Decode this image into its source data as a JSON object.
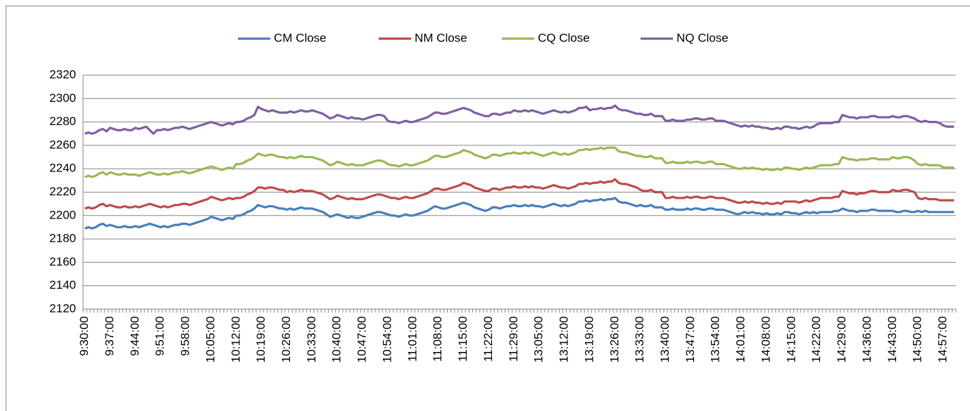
{
  "chart_data": {
    "type": "line",
    "categories": [
      "9:30:00",
      null,
      null,
      null,
      null,
      null,
      null,
      "9:37:00",
      null,
      null,
      null,
      null,
      null,
      null,
      "9:44:00",
      null,
      null,
      null,
      null,
      null,
      null,
      "9:51:00",
      null,
      null,
      null,
      null,
      null,
      null,
      "9:58:00",
      null,
      null,
      null,
      null,
      null,
      null,
      "10:05:00",
      null,
      null,
      null,
      null,
      null,
      null,
      "10:12:00",
      null,
      null,
      null,
      null,
      null,
      null,
      "10:19:00",
      null,
      null,
      null,
      null,
      null,
      null,
      "10:26:00",
      null,
      null,
      null,
      null,
      null,
      null,
      "10:33:00",
      null,
      null,
      null,
      null,
      null,
      null,
      "10:40:00",
      null,
      null,
      null,
      null,
      null,
      null,
      "10:47:00",
      null,
      null,
      null,
      null,
      null,
      null,
      "10:54:00",
      null,
      null,
      null,
      null,
      null,
      null,
      "11:01:00",
      null,
      null,
      null,
      null,
      null,
      null,
      "11:08:00",
      null,
      null,
      null,
      null,
      null,
      null,
      "11:15:00",
      null,
      null,
      null,
      null,
      null,
      null,
      "11:22:00",
      null,
      null,
      null,
      null,
      null,
      null,
      "11:29:00",
      null,
      null,
      null,
      null,
      null,
      null,
      "13:05:00",
      null,
      null,
      null,
      null,
      null,
      null,
      "13:12:00",
      null,
      null,
      null,
      null,
      null,
      null,
      "13:19:00",
      null,
      null,
      null,
      null,
      null,
      null,
      "13:26:00",
      null,
      null,
      null,
      null,
      null,
      null,
      "13:33:00",
      null,
      null,
      null,
      null,
      null,
      null,
      "13:40:00",
      null,
      null,
      null,
      null,
      null,
      null,
      "13:47:00",
      null,
      null,
      null,
      null,
      null,
      null,
      "13:54:00",
      null,
      null,
      null,
      null,
      null,
      null,
      "14:01:00",
      null,
      null,
      null,
      null,
      null,
      null,
      "14:08:00",
      null,
      null,
      null,
      null,
      null,
      null,
      "14:15:00",
      null,
      null,
      null,
      null,
      null,
      null,
      "14:22:00",
      null,
      null,
      null,
      null,
      null,
      null,
      "14:29:00",
      null,
      null,
      null,
      null,
      null,
      null,
      "14:36:00",
      null,
      null,
      null,
      null,
      null,
      null,
      "14:43:00",
      null,
      null,
      null,
      null,
      null,
      null,
      "14:50:00",
      null,
      null,
      null,
      null,
      null,
      null,
      "14:57:00",
      null,
      null,
      null
    ],
    "series": [
      {
        "name": "CM Close",
        "color": "#4a7ebb",
        "values": [
          2189,
          2190,
          2189,
          2190,
          2192,
          2193,
          2191,
          2192,
          2191,
          2190,
          2190,
          2191,
          2190,
          2190,
          2191,
          2190,
          2191,
          2192,
          2193,
          2192,
          2191,
          2190,
          2191,
          2190,
          2191,
          2192,
          2192,
          2193,
          2193,
          2192,
          2193,
          2194,
          2195,
          2196,
          2197,
          2199,
          2198,
          2197,
          2196,
          2197,
          2198,
          2197,
          2200,
          2200,
          2201,
          2203,
          2204,
          2206,
          2209,
          2208,
          2207,
          2208,
          2208,
          2207,
          2206,
          2206,
          2205,
          2206,
          2205,
          2206,
          2207,
          2206,
          2206,
          2206,
          2205,
          2204,
          2203,
          2201,
          2199,
          2200,
          2201,
          2200,
          2199,
          2198,
          2199,
          2198,
          2198,
          2199,
          2200,
          2201,
          2202,
          2203,
          2203,
          2202,
          2201,
          2200,
          2200,
          2199,
          2200,
          2201,
          2200,
          2200,
          2201,
          2202,
          2203,
          2204,
          2206,
          2208,
          2207,
          2206,
          2206,
          2207,
          2208,
          2209,
          2210,
          2211,
          2210,
          2209,
          2207,
          2206,
          2205,
          2204,
          2205,
          2207,
          2207,
          2206,
          2207,
          2208,
          2208,
          2209,
          2208,
          2208,
          2209,
          2208,
          2209,
          2208,
          2208,
          2207,
          2208,
          2209,
          2210,
          2209,
          2208,
          2209,
          2208,
          2209,
          2210,
          2212,
          2212,
          2213,
          2212,
          2213,
          2213,
          2214,
          2213,
          2214,
          2214,
          2215,
          2212,
          2211,
          2211,
          2210,
          2209,
          2208,
          2209,
          2208,
          2208,
          2209,
          2207,
          2207,
          2207,
          2205,
          2205,
          2206,
          2205,
          2205,
          2205,
          2206,
          2205,
          2206,
          2206,
          2205,
          2205,
          2206,
          2206,
          2205,
          2205,
          2205,
          2204,
          2203,
          2202,
          2201,
          2202,
          2203,
          2202,
          2203,
          2202,
          2202,
          2201,
          2202,
          2201,
          2201,
          2202,
          2201,
          2203,
          2203,
          2202,
          2202,
          2201,
          2202,
          2203,
          2202,
          2203,
          2202,
          2203,
          2203,
          2203,
          2203,
          2204,
          2204,
          2206,
          2205,
          2204,
          2204,
          2203,
          2204,
          2204,
          2204,
          2205,
          2205,
          2204,
          2204,
          2204,
          2204,
          2204,
          2203,
          2203,
          2204,
          2204,
          2203,
          2203,
          2204,
          2203,
          2204,
          2203,
          2203,
          2203,
          2203,
          2203,
          2203,
          2203,
          2203
        ]
      },
      {
        "name": "NM Close",
        "color": "#be4b48",
        "values": [
          2206,
          2207,
          2206,
          2207,
          2209,
          2210,
          2208,
          2209,
          2208,
          2207,
          2207,
          2208,
          2207,
          2207,
          2208,
          2207,
          2208,
          2209,
          2210,
          2209,
          2208,
          2207,
          2208,
          2207,
          2208,
          2209,
          2209,
          2210,
          2210,
          2209,
          2210,
          2211,
          2212,
          2213,
          2214,
          2216,
          2215,
          2214,
          2213,
          2214,
          2215,
          2214,
          2215,
          2215,
          2216,
          2218,
          2219,
          2221,
          2224,
          2224,
          2223,
          2224,
          2224,
          2223,
          2222,
          2222,
          2220,
          2221,
          2220,
          2221,
          2222,
          2221,
          2221,
          2221,
          2220,
          2219,
          2218,
          2216,
          2214,
          2215,
          2217,
          2216,
          2215,
          2214,
          2215,
          2214,
          2214,
          2214,
          2215,
          2216,
          2217,
          2218,
          2218,
          2217,
          2216,
          2215,
          2215,
          2214,
          2215,
          2216,
          2215,
          2215,
          2216,
          2217,
          2218,
          2219,
          2221,
          2223,
          2223,
          2222,
          2222,
          2223,
          2224,
          2225,
          2226,
          2228,
          2227,
          2226,
          2224,
          2223,
          2222,
          2221,
          2221,
          2223,
          2223,
          2222,
          2223,
          2224,
          2224,
          2225,
          2224,
          2224,
          2225,
          2224,
          2225,
          2224,
          2224,
          2223,
          2224,
          2225,
          2226,
          2225,
          2224,
          2224,
          2223,
          2224,
          2225,
          2227,
          2227,
          2228,
          2227,
          2228,
          2228,
          2229,
          2228,
          2229,
          2229,
          2231,
          2228,
          2227,
          2227,
          2226,
          2225,
          2224,
          2222,
          2221,
          2221,
          2222,
          2220,
          2220,
          2220,
          2215,
          2215,
          2216,
          2215,
          2215,
          2215,
          2216,
          2215,
          2216,
          2216,
          2215,
          2215,
          2216,
          2216,
          2215,
          2215,
          2215,
          2214,
          2213,
          2212,
          2211,
          2211,
          2212,
          2211,
          2212,
          2211,
          2211,
          2210,
          2211,
          2210,
          2210,
          2211,
          2210,
          2212,
          2212,
          2212,
          2212,
          2211,
          2212,
          2213,
          2212,
          2213,
          2214,
          2215,
          2215,
          2215,
          2215,
          2216,
          2216,
          2221,
          2220,
          2219,
          2219,
          2218,
          2219,
          2219,
          2220,
          2221,
          2221,
          2220,
          2220,
          2220,
          2220,
          2222,
          2221,
          2221,
          2222,
          2222,
          2221,
          2220,
          2215,
          2214,
          2215,
          2214,
          2214,
          2214,
          2213,
          2213,
          2213,
          2213,
          2213
        ]
      },
      {
        "name": "CQ Close",
        "color": "#98b954",
        "values": [
          2233,
          2234,
          2233,
          2234,
          2236,
          2237,
          2235,
          2237,
          2236,
          2235,
          2235,
          2236,
          2235,
          2235,
          2235,
          2234,
          2235,
          2236,
          2237,
          2236,
          2235,
          2235,
          2236,
          2235,
          2236,
          2237,
          2237,
          2238,
          2237,
          2236,
          2237,
          2238,
          2239,
          2240,
          2241,
          2242,
          2241,
          2240,
          2239,
          2240,
          2241,
          2240,
          2244,
          2244,
          2245,
          2247,
          2248,
          2250,
          2253,
          2252,
          2251,
          2252,
          2252,
          2251,
          2250,
          2250,
          2249,
          2250,
          2249,
          2250,
          2251,
          2250,
          2250,
          2250,
          2249,
          2248,
          2247,
          2245,
          2243,
          2244,
          2246,
          2245,
          2244,
          2243,
          2244,
          2243,
          2243,
          2243,
          2244,
          2245,
          2246,
          2247,
          2247,
          2246,
          2244,
          2243,
          2243,
          2242,
          2243,
          2244,
          2243,
          2243,
          2244,
          2245,
          2246,
          2247,
          2249,
          2251,
          2251,
          2250,
          2250,
          2251,
          2252,
          2253,
          2254,
          2256,
          2255,
          2254,
          2252,
          2251,
          2250,
          2249,
          2250,
          2252,
          2252,
          2251,
          2252,
          2253,
          2253,
          2254,
          2253,
          2253,
          2254,
          2253,
          2254,
          2253,
          2252,
          2251,
          2252,
          2253,
          2254,
          2253,
          2252,
          2253,
          2252,
          2253,
          2254,
          2256,
          2256,
          2257,
          2256,
          2257,
          2257,
          2258,
          2257,
          2258,
          2258,
          2258,
          2255,
          2254,
          2254,
          2253,
          2252,
          2251,
          2251,
          2250,
          2250,
          2251,
          2249,
          2249,
          2249,
          2245,
          2245,
          2246,
          2245,
          2245,
          2245,
          2246,
          2245,
          2246,
          2246,
          2245,
          2245,
          2246,
          2246,
          2244,
          2244,
          2244,
          2243,
          2242,
          2241,
          2240,
          2240,
          2241,
          2240,
          2241,
          2240,
          2240,
          2239,
          2240,
          2239,
          2239,
          2240,
          2239,
          2241,
          2241,
          2240,
          2240,
          2239,
          2240,
          2241,
          2240,
          2241,
          2242,
          2243,
          2243,
          2243,
          2243,
          2244,
          2244,
          2250,
          2249,
          2248,
          2248,
          2247,
          2248,
          2248,
          2248,
          2249,
          2249,
          2248,
          2248,
          2248,
          2248,
          2250,
          2249,
          2249,
          2250,
          2250,
          2249,
          2247,
          2244,
          2243,
          2244,
          2243,
          2243,
          2243,
          2243,
          2241,
          2241,
          2241,
          2241
        ]
      },
      {
        "name": "NQ Close",
        "color": "#7d60a0",
        "values": [
          2270,
          2271,
          2270,
          2271,
          2273,
          2274,
          2272,
          2275,
          2274,
          2273,
          2273,
          2274,
          2273,
          2273,
          2275,
          2274,
          2275,
          2276,
          2273,
          2270,
          2273,
          2273,
          2274,
          2273,
          2274,
          2275,
          2275,
          2276,
          2275,
          2274,
          2275,
          2276,
          2277,
          2278,
          2279,
          2280,
          2279,
          2278,
          2277,
          2278,
          2279,
          2278,
          2280,
          2280,
          2281,
          2283,
          2284,
          2286,
          2293,
          2291,
          2290,
          2289,
          2290,
          2289,
          2288,
          2288,
          2288,
          2289,
          2288,
          2289,
          2290,
          2289,
          2289,
          2290,
          2289,
          2288,
          2287,
          2285,
          2283,
          2284,
          2286,
          2285,
          2284,
          2283,
          2284,
          2283,
          2283,
          2282,
          2283,
          2284,
          2285,
          2286,
          2286,
          2285,
          2281,
          2280,
          2280,
          2279,
          2280,
          2281,
          2280,
          2280,
          2281,
          2282,
          2283,
          2284,
          2286,
          2288,
          2288,
          2287,
          2287,
          2288,
          2289,
          2290,
          2291,
          2292,
          2291,
          2290,
          2288,
          2287,
          2286,
          2285,
          2285,
          2287,
          2287,
          2286,
          2287,
          2288,
          2288,
          2290,
          2289,
          2289,
          2290,
          2289,
          2290,
          2289,
          2288,
          2287,
          2288,
          2289,
          2290,
          2289,
          2288,
          2289,
          2288,
          2289,
          2290,
          2292,
          2292,
          2293,
          2290,
          2291,
          2291,
          2292,
          2291,
          2292,
          2292,
          2294,
          2291,
          2290,
          2290,
          2289,
          2288,
          2287,
          2287,
          2286,
          2286,
          2287,
          2285,
          2285,
          2285,
          2281,
          2281,
          2282,
          2281,
          2281,
          2281,
          2282,
          2282,
          2283,
          2283,
          2282,
          2282,
          2283,
          2283,
          2281,
          2281,
          2281,
          2280,
          2279,
          2278,
          2277,
          2276,
          2277,
          2276,
          2277,
          2276,
          2276,
          2275,
          2275,
          2274,
          2274,
          2275,
          2274,
          2276,
          2276,
          2275,
          2275,
          2274,
          2275,
          2276,
          2275,
          2276,
          2278,
          2279,
          2279,
          2279,
          2279,
          2280,
          2280,
          2286,
          2285,
          2284,
          2284,
          2283,
          2284,
          2284,
          2284,
          2285,
          2285,
          2284,
          2284,
          2284,
          2284,
          2285,
          2284,
          2284,
          2285,
          2285,
          2284,
          2283,
          2281,
          2280,
          2281,
          2280,
          2280,
          2280,
          2279,
          2277,
          2276,
          2276,
          2276
        ]
      }
    ],
    "ylim": [
      2120,
      2320
    ],
    "yticks": [
      2120,
      2140,
      2160,
      2180,
      2200,
      2220,
      2240,
      2260,
      2280,
      2300,
      2320
    ],
    "grid": true,
    "legend": "top"
  }
}
